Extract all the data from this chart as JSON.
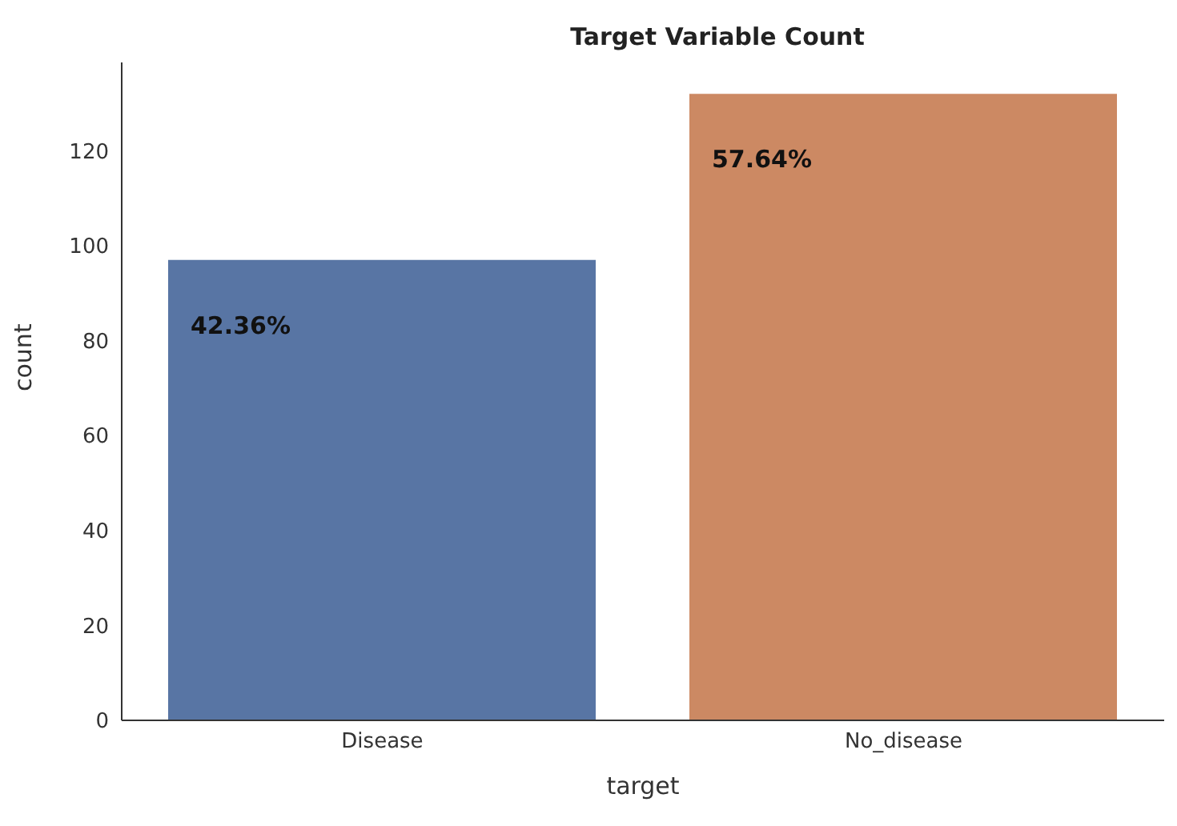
{
  "chart_data": {
    "type": "bar",
    "title": "Target Variable Count",
    "xlabel": "target",
    "ylabel": "count",
    "categories": [
      "Disease",
      "No_disease"
    ],
    "values": [
      97,
      132
    ],
    "colors": [
      "#5875a4",
      "#cc8963"
    ],
    "annotations": [
      "42.36%",
      "57.64%"
    ],
    "ylim": [
      0,
      138.6
    ],
    "yticks": [
      0,
      20,
      40,
      60,
      80,
      100,
      120
    ]
  }
}
